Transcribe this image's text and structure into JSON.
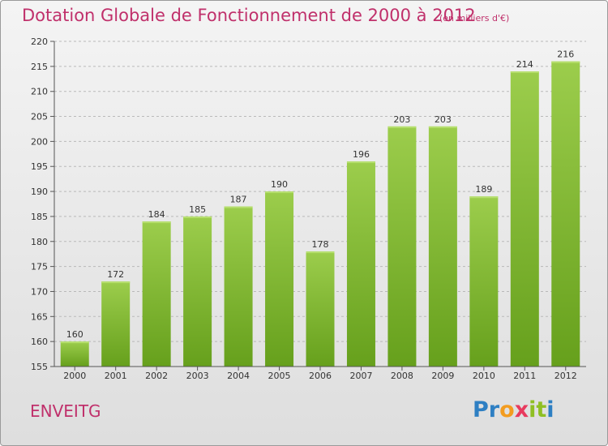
{
  "chart_data": {
    "type": "bar",
    "title": "Dotation Globale de Fonctionnement de 2000 à 2012",
    "subtitle": "(en milliers d'€)",
    "categories": [
      "2000",
      "2001",
      "2002",
      "2003",
      "2004",
      "2005",
      "2006",
      "2007",
      "2008",
      "2009",
      "2010",
      "2011",
      "2012"
    ],
    "values": [
      160,
      172,
      184,
      185,
      187,
      190,
      178,
      196,
      203,
      203,
      189,
      214,
      216
    ],
    "ylim": [
      155,
      220
    ],
    "yticks": [
      155,
      160,
      165,
      170,
      175,
      180,
      185,
      190,
      195,
      200,
      205,
      210,
      215,
      220
    ],
    "grid": true,
    "colors": {
      "bar_top": "#9ccd4c",
      "bar_bottom": "#66a01c",
      "title": "#c0306b"
    }
  },
  "commune": "ENVEITG",
  "logo": {
    "letters": [
      "P",
      "r",
      "o",
      "x",
      "i",
      "t",
      "i"
    ],
    "colors": [
      "#2e7fc3",
      "#2e7fc3",
      "#f39c1f",
      "#e83a5e",
      "#8fbf24",
      "#8fbf24",
      "#2e7fc3"
    ]
  }
}
